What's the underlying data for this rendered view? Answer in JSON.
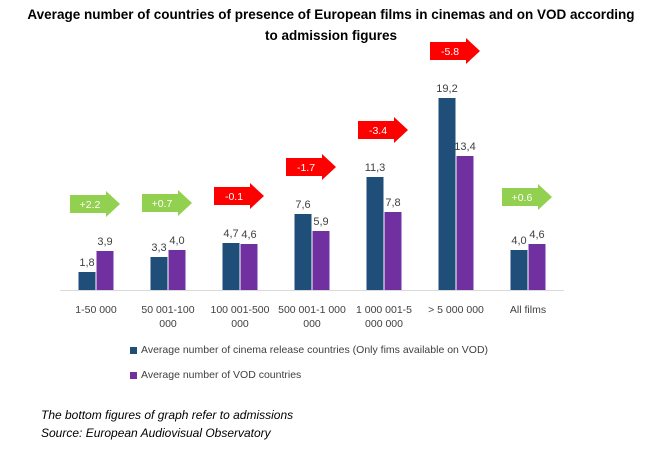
{
  "chart_data": {
    "type": "bar",
    "title": "Average number of countries of presence of European films in cinemas and on VOD according to admission figures",
    "categories": [
      [
        "1-50 000"
      ],
      [
        "50 001-100",
        "000"
      ],
      [
        "100 001-500",
        "000"
      ],
      [
        "500 001-1 000",
        "000"
      ],
      [
        "1 000 001-5",
        "000 000"
      ],
      [
        "> 5 000 000"
      ],
      [
        "All films"
      ]
    ],
    "series": [
      {
        "name": "Average number of cinema release countries (Only fims available on VOD)",
        "color": "#1f4e79",
        "values": [
          1.8,
          3.3,
          4.7,
          7.6,
          11.3,
          19.2,
          4.0
        ],
        "labels": [
          "1,8",
          "3,3",
          "4,7",
          "7,6",
          "11,3",
          "19,2",
          "4,0"
        ]
      },
      {
        "name": "Average number  of VOD countries",
        "color": "#7030a0",
        "values": [
          3.9,
          4.0,
          4.6,
          5.9,
          7.8,
          13.4,
          4.6
        ],
        "labels": [
          "3,9",
          "4,0",
          "4,6",
          "5,9",
          "7,8",
          "13,4",
          "4,6"
        ]
      }
    ],
    "differences": [
      {
        "label": "+2.2",
        "value": 2.2,
        "color": "#92d050"
      },
      {
        "label": "+0.7",
        "value": 0.7,
        "color": "#92d050"
      },
      {
        "label": "-0.1",
        "value": -0.1,
        "color": "#ff0000"
      },
      {
        "label": "-1.7",
        "value": -1.7,
        "color": "#ff0000"
      },
      {
        "label": "-3.4",
        "value": -3.4,
        "color": "#ff0000"
      },
      {
        "label": "-5.8",
        "value": -5.8,
        "color": "#ff0000"
      },
      {
        "label": "+0.6",
        "value": 0.6,
        "color": "#92d050"
      }
    ],
    "ylim": [
      0,
      20
    ],
    "xlabel": "",
    "ylabel": "",
    "grid": false,
    "legend_position": "bottom"
  },
  "footnote": {
    "line1": "The bottom figures of graph refer to admissions",
    "line2": "Source: European Audiovisual Observatory"
  }
}
